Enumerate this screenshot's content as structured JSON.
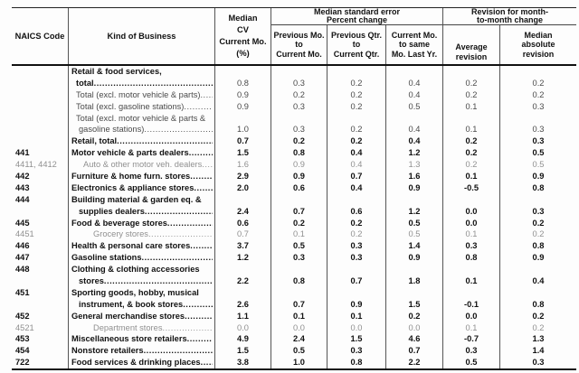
{
  "table_title": "Median CV and median standard error reliability table by NAICS kind of business",
  "header": {
    "naics": "NAICS Code",
    "kind": "Kind of Business",
    "cv_lines": [
      "Median",
      "CV",
      "Current Mo.",
      "(%)"
    ],
    "se_group_lines": [
      "Median standard error",
      "Percent change"
    ],
    "rev_group_lines": [
      "Revision for month-",
      "to-month change"
    ],
    "sub_headers": [
      [
        "Previous Mo.",
        "to",
        "Current Mo."
      ],
      [
        "Previous Qtr.",
        "to",
        "Current Qtr."
      ],
      [
        "Current Mo.",
        "to same",
        "Mo. Last Yr."
      ],
      [
        "Average",
        "revision"
      ],
      [
        "Median",
        "absolute",
        "revision"
      ]
    ]
  },
  "rows": [
    {
      "naics": "",
      "label": "Retail & food services,",
      "indent": 0,
      "lstyle": "bold",
      "leader": false,
      "values": null
    },
    {
      "naics": "",
      "label": "total",
      "indent": 1,
      "lstyle": "bold",
      "vstyle": "regular",
      "leader": true,
      "values": [
        "0.8",
        "0.3",
        "0.2",
        "0.4",
        "0.2",
        "0.2"
      ]
    },
    {
      "naics": "",
      "label": "Total (excl. motor vehicle & parts)",
      "indent": 1,
      "lstyle": "regular",
      "vstyle": "regular",
      "leader": true,
      "values": [
        "0.9",
        "0.2",
        "0.2",
        "0.4",
        "0.2",
        "0.2"
      ]
    },
    {
      "naics": "",
      "label": "Total (excl. gasoline stations)",
      "indent": 1,
      "lstyle": "regular",
      "vstyle": "regular",
      "leader": true,
      "values": [
        "0.9",
        "0.3",
        "0.2",
        "0.5",
        "0.1",
        "0.3"
      ]
    },
    {
      "naics": "",
      "label": "Total (excl. motor vehicle & parts &",
      "indent": 1,
      "lstyle": "regular",
      "leader": false,
      "values": null
    },
    {
      "naics": "",
      "label": "gasoline stations)",
      "indent": 2,
      "lstyle": "regular",
      "vstyle": "regular",
      "leader": true,
      "values": [
        "1.0",
        "0.3",
        "0.2",
        "0.4",
        "0.1",
        "0.3"
      ]
    },
    {
      "naics": "",
      "label": "Retail, total",
      "indent": 0,
      "lstyle": "bold",
      "vstyle": "bold",
      "leader": true,
      "values": [
        "0.7",
        "0.2",
        "0.2",
        "0.4",
        "0.2",
        "0.3"
      ]
    },
    {
      "naics": "441",
      "label": "Motor vehicle & parts dealers",
      "indent": 0,
      "lstyle": "bold",
      "vstyle": "bold",
      "leader": true,
      "values": [
        "1.5",
        "0.8",
        "0.4",
        "1.2",
        "0.2",
        "0.5"
      ]
    },
    {
      "naics": "4411, 4412",
      "label": "Auto & other motor veh. dealers",
      "indent": 3,
      "lstyle": "gray",
      "vstyle": "gray",
      "leader": true,
      "values": [
        "1.6",
        "0.9",
        "0.4",
        "1.3",
        "0.2",
        "0.5"
      ]
    },
    {
      "naics": "442",
      "label": "Furniture & home furn. stores",
      "indent": 0,
      "lstyle": "bold",
      "vstyle": "bold",
      "leader": true,
      "values": [
        "2.9",
        "0.9",
        "0.7",
        "1.6",
        "0.1",
        "0.9"
      ]
    },
    {
      "naics": "443",
      "label": "Electronics & appliance stores",
      "indent": 0,
      "lstyle": "bold",
      "vstyle": "bold",
      "leader": true,
      "values": [
        "2.0",
        "0.6",
        "0.4",
        "0.9",
        "-0.5",
        "0.8"
      ]
    },
    {
      "naics": "444",
      "label": "Building material & garden eq. &",
      "indent": 0,
      "lstyle": "bold",
      "leader": false,
      "values": null
    },
    {
      "naics": "",
      "label": "supplies dealers",
      "indent": 2,
      "lstyle": "bold",
      "vstyle": "bold",
      "leader": true,
      "values": [
        "2.4",
        "0.7",
        "0.6",
        "1.2",
        "0.0",
        "0.3"
      ]
    },
    {
      "naics": "445",
      "label": "Food & beverage stores",
      "indent": 0,
      "lstyle": "bold",
      "vstyle": "bold",
      "leader": true,
      "values": [
        "0.6",
        "0.2",
        "0.2",
        "0.5",
        "0.0",
        "0.2"
      ]
    },
    {
      "naics": "4451",
      "label": "Grocery stores",
      "indent": 4,
      "lstyle": "gray",
      "vstyle": "gray",
      "leader": true,
      "values": [
        "0.7",
        "0.1",
        "0.2",
        "0.5",
        "0.1",
        "0.2"
      ]
    },
    {
      "naics": "446",
      "label": "Health & personal care stores",
      "indent": 0,
      "lstyle": "bold",
      "vstyle": "bold",
      "leader": true,
      "values": [
        "3.7",
        "0.5",
        "0.3",
        "1.4",
        "0.3",
        "0.8"
      ]
    },
    {
      "naics": "447",
      "label": "Gasoline stations",
      "indent": 0,
      "lstyle": "bold",
      "vstyle": "bold",
      "leader": true,
      "values": [
        "1.2",
        "0.3",
        "0.3",
        "0.9",
        "0.8",
        "0.9"
      ]
    },
    {
      "naics": "448",
      "label": "Clothing & clothing accessories",
      "indent": 0,
      "lstyle": "bold",
      "leader": false,
      "values": null
    },
    {
      "naics": "",
      "label": "stores",
      "indent": 2,
      "lstyle": "bold",
      "vstyle": "bold",
      "leader": true,
      "values": [
        "2.2",
        "0.8",
        "0.7",
        "1.8",
        "0.1",
        "0.4"
      ]
    },
    {
      "naics": "451",
      "label": "Sporting goods, hobby, musical",
      "indent": 0,
      "lstyle": "bold",
      "leader": false,
      "values": null
    },
    {
      "naics": "",
      "label": "instrument, & book stores",
      "indent": 2,
      "lstyle": "bold",
      "vstyle": "bold",
      "leader": true,
      "values": [
        "2.6",
        "0.7",
        "0.9",
        "1.5",
        "-0.1",
        "0.8"
      ]
    },
    {
      "naics": "452",
      "label": "General merchandise stores",
      "indent": 0,
      "lstyle": "bold",
      "vstyle": "bold",
      "leader": true,
      "values": [
        "1.1",
        "0.1",
        "0.1",
        "0.2",
        "0.0",
        "0.2"
      ]
    },
    {
      "naics": "4521",
      "label": "Department stores",
      "indent": 4,
      "lstyle": "gray",
      "vstyle": "gray",
      "leader": true,
      "values": [
        "0.0",
        "0.0",
        "0.0",
        "0.0",
        "0.1",
        "0.2"
      ]
    },
    {
      "naics": "453",
      "label": "Miscellaneous store retailers",
      "indent": 0,
      "lstyle": "bold",
      "vstyle": "bold",
      "leader": true,
      "values": [
        "4.9",
        "2.4",
        "1.5",
        "4.6",
        "-0.7",
        "1.3"
      ]
    },
    {
      "naics": "454",
      "label": "Nonstore retailers",
      "indent": 0,
      "lstyle": "bold",
      "vstyle": "bold",
      "leader": true,
      "values": [
        "1.5",
        "0.5",
        "0.3",
        "0.7",
        "0.3",
        "1.4"
      ]
    },
    {
      "naics": "722",
      "label": "Food services & drinking places",
      "indent": 0,
      "lstyle": "bold",
      "vstyle": "bold",
      "leader": true,
      "values": [
        "3.8",
        "1.0",
        "0.8",
        "2.2",
        "0.5",
        "0.3"
      ]
    }
  ]
}
